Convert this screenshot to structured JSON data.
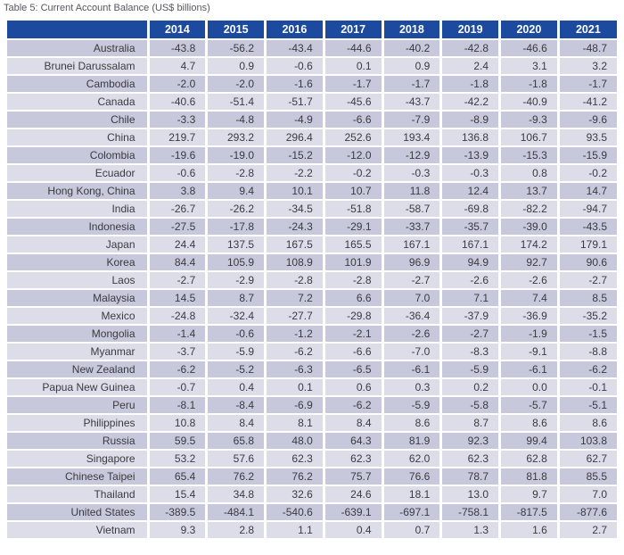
{
  "caption": "Table 5: Current Account Balance (US$ billions)",
  "colors": {
    "header_bg": "#1b4a9e",
    "header_text": "#ffffff",
    "row_odd_bg": "#c8c8dc",
    "row_even_bg": "#dddde9",
    "cell_text": "#3a3a3e",
    "caption_text": "#56575c",
    "grid_gap": "#ffffff"
  },
  "chart_data": {
    "type": "table",
    "title": "Table 5: Current Account Balance (US$ billions)",
    "unit": "US$ billions",
    "corner_label": "",
    "columns": [
      "2014",
      "2015",
      "2016",
      "2017",
      "2018",
      "2019",
      "2020",
      "2021"
    ],
    "rows": [
      {
        "label": "Australia",
        "values": [
          -43.8,
          -56.2,
          -43.4,
          -44.6,
          -40.2,
          -42.8,
          -46.6,
          -48.7
        ]
      },
      {
        "label": "Brunei Darussalam",
        "values": [
          4.7,
          0.9,
          -0.6,
          0.1,
          0.9,
          2.4,
          3.1,
          3.2
        ]
      },
      {
        "label": "Cambodia",
        "values": [
          -2.0,
          -2.0,
          -1.6,
          -1.7,
          -1.7,
          -1.8,
          -1.8,
          -1.7
        ]
      },
      {
        "label": "Canada",
        "values": [
          -40.6,
          -51.4,
          -51.7,
          -45.6,
          -43.7,
          -42.2,
          -40.9,
          -41.2
        ]
      },
      {
        "label": "Chile",
        "values": [
          -3.3,
          -4.8,
          -4.9,
          -6.6,
          -7.9,
          -8.9,
          -9.3,
          -9.6
        ]
      },
      {
        "label": "China",
        "values": [
          219.7,
          293.2,
          296.4,
          252.6,
          193.4,
          136.8,
          106.7,
          93.5
        ]
      },
      {
        "label": "Colombia",
        "values": [
          -19.6,
          -19.0,
          -15.2,
          -12.0,
          -12.9,
          -13.9,
          -15.3,
          -15.9
        ]
      },
      {
        "label": "Ecuador",
        "values": [
          -0.6,
          -2.8,
          -2.2,
          -0.2,
          -0.3,
          -0.3,
          0.8,
          -0.2
        ]
      },
      {
        "label": "Hong Kong, China",
        "values": [
          3.8,
          9.4,
          10.1,
          10.7,
          11.8,
          12.4,
          13.7,
          14.7
        ]
      },
      {
        "label": "India",
        "values": [
          -26.7,
          -26.2,
          -34.5,
          -51.8,
          -58.7,
          -69.8,
          -82.2,
          -94.7
        ]
      },
      {
        "label": "Indonesia",
        "values": [
          -27.5,
          -17.8,
          -24.3,
          -29.1,
          -33.7,
          -35.7,
          -39.0,
          -43.5
        ]
      },
      {
        "label": "Japan",
        "values": [
          24.4,
          137.5,
          167.5,
          165.5,
          167.1,
          167.1,
          174.2,
          179.1
        ]
      },
      {
        "label": "Korea",
        "values": [
          84.4,
          105.9,
          108.9,
          101.9,
          96.9,
          94.9,
          92.7,
          90.6
        ]
      },
      {
        "label": "Laos",
        "values": [
          -2.7,
          -2.9,
          -2.8,
          -2.8,
          -2.7,
          -2.6,
          -2.6,
          -2.7
        ]
      },
      {
        "label": "Malaysia",
        "values": [
          14.5,
          8.7,
          7.2,
          6.6,
          7.0,
          7.1,
          7.4,
          8.5
        ]
      },
      {
        "label": "Mexico",
        "values": [
          -24.8,
          -32.4,
          -27.7,
          -29.8,
          -36.4,
          -37.9,
          -36.9,
          -35.2
        ]
      },
      {
        "label": "Mongolia",
        "values": [
          -1.4,
          -0.6,
          -1.2,
          -2.1,
          -2.6,
          -2.7,
          -1.9,
          -1.5
        ]
      },
      {
        "label": "Myanmar",
        "values": [
          -3.7,
          -5.9,
          -6.2,
          -6.6,
          -7.0,
          -8.3,
          -9.1,
          -8.8
        ]
      },
      {
        "label": "New Zealand",
        "values": [
          -6.2,
          -5.2,
          -6.3,
          -6.5,
          -6.1,
          -5.9,
          -6.1,
          -6.2
        ]
      },
      {
        "label": "Papua New Guinea",
        "values": [
          -0.7,
          0.4,
          0.1,
          0.6,
          0.3,
          0.2,
          0.0,
          -0.1
        ]
      },
      {
        "label": "Peru",
        "values": [
          -8.1,
          -8.4,
          -6.9,
          -6.2,
          -5.9,
          -5.8,
          -5.7,
          -5.1
        ]
      },
      {
        "label": "Philippines",
        "values": [
          10.8,
          8.4,
          8.1,
          8.4,
          8.6,
          8.7,
          8.6,
          8.6
        ]
      },
      {
        "label": "Russia",
        "values": [
          59.5,
          65.8,
          48.0,
          64.3,
          81.9,
          92.3,
          99.4,
          103.8
        ]
      },
      {
        "label": "Singapore",
        "values": [
          53.2,
          57.6,
          62.3,
          62.3,
          62.0,
          62.3,
          62.8,
          62.7
        ]
      },
      {
        "label": "Chinese Taipei",
        "values": [
          65.4,
          76.2,
          76.2,
          75.7,
          76.6,
          78.7,
          81.8,
          85.5
        ]
      },
      {
        "label": "Thailand",
        "values": [
          15.4,
          34.8,
          32.6,
          24.6,
          18.1,
          13.0,
          9.7,
          7.0
        ]
      },
      {
        "label": "United States",
        "values": [
          -389.5,
          -484.1,
          -540.6,
          -639.1,
          -697.1,
          -758.1,
          -817.5,
          -877.6
        ]
      },
      {
        "label": "Vietnam",
        "values": [
          9.3,
          2.8,
          1.1,
          0.4,
          0.7,
          1.3,
          1.6,
          2.7
        ]
      }
    ]
  }
}
